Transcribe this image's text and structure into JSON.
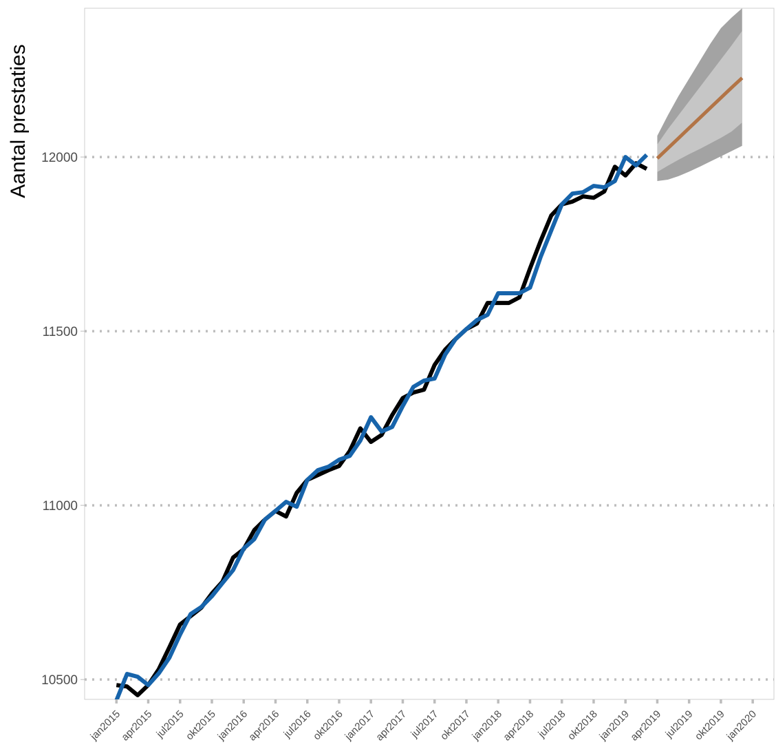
{
  "chart_data": {
    "type": "line",
    "y_label": "Aantal prestaties",
    "ylim": [
      10443,
      12427
    ],
    "yticks": [
      10500,
      11000,
      11500,
      12000
    ],
    "xlim": [
      "2014-10",
      "2020-03"
    ],
    "xticks": [
      {
        "value": "2015-01",
        "label": "jan2015"
      },
      {
        "value": "2015-04",
        "label": "apr2015"
      },
      {
        "value": "2015-07",
        "label": "jul2015"
      },
      {
        "value": "2015-10",
        "label": "okt2015"
      },
      {
        "value": "2016-01",
        "label": "jan2016"
      },
      {
        "value": "2016-04",
        "label": "apr2016"
      },
      {
        "value": "2016-07",
        "label": "jul2016"
      },
      {
        "value": "2016-10",
        "label": "okt2016"
      },
      {
        "value": "2017-01",
        "label": "jan2017"
      },
      {
        "value": "2017-04",
        "label": "apr2017"
      },
      {
        "value": "2017-07",
        "label": "jul2017"
      },
      {
        "value": "2017-10",
        "label": "okt2017"
      },
      {
        "value": "2018-01",
        "label": "jan2018"
      },
      {
        "value": "2018-04",
        "label": "apr2018"
      },
      {
        "value": "2018-07",
        "label": "jul2018"
      },
      {
        "value": "2018-10",
        "label": "okt2018"
      },
      {
        "value": "2019-01",
        "label": "jan2019"
      },
      {
        "value": "2019-04",
        "label": "apr2019"
      },
      {
        "value": "2019-07",
        "label": "jul2019"
      },
      {
        "value": "2019-10",
        "label": "okt2019"
      },
      {
        "value": "2020-01",
        "label": "jan2020"
      }
    ],
    "grid": true,
    "x": [
      "2015-01",
      "2015-02",
      "2015-03",
      "2015-04",
      "2015-05",
      "2015-06",
      "2015-07",
      "2015-08",
      "2015-09",
      "2015-10",
      "2015-11",
      "2015-12",
      "2016-01",
      "2016-02",
      "2016-03",
      "2016-04",
      "2016-05",
      "2016-06",
      "2016-07",
      "2016-08",
      "2016-09",
      "2016-10",
      "2016-11",
      "2016-12",
      "2017-01",
      "2017-02",
      "2017-03",
      "2017-04",
      "2017-05",
      "2017-06",
      "2017-07",
      "2017-08",
      "2017-09",
      "2017-10",
      "2017-11",
      "2017-12",
      "2018-01",
      "2018-02",
      "2018-03",
      "2018-04",
      "2018-05",
      "2018-06",
      "2018-07",
      "2018-08",
      "2018-09",
      "2018-10",
      "2018-11",
      "2018-12",
      "2019-01",
      "2019-02",
      "2019-03"
    ],
    "series": [
      {
        "color": "#000000",
        "values": [
          10484,
          10480,
          10455,
          10484,
          10530,
          10593,
          10658,
          10682,
          10706,
          10747,
          10781,
          10850,
          10874,
          10929,
          10959,
          10984,
          10968,
          11036,
          11073,
          11087,
          11101,
          11113,
          11156,
          11221,
          11182,
          11202,
          11259,
          11308,
          11324,
          11332,
          11403,
          11447,
          11478,
          11506,
          11522,
          11581,
          11581,
          11581,
          11597,
          11680,
          11759,
          11832,
          11864,
          11872,
          11887,
          11883,
          11901,
          11972,
          11947,
          11982,
          11966
        ]
      },
      {
        "color": "#1764ab",
        "values": [
          10440,
          10516,
          10508,
          10484,
          10518,
          10563,
          10629,
          10688,
          10708,
          10739,
          10777,
          10814,
          10876,
          10903,
          10959,
          10984,
          11010,
          10996,
          11073,
          11101,
          11111,
          11131,
          11142,
          11186,
          11253,
          11212,
          11225,
          11285,
          11340,
          11358,
          11364,
          11433,
          11478,
          11506,
          11532,
          11547,
          11609,
          11609,
          11609,
          11625,
          11713,
          11789,
          11864,
          11895,
          11899,
          11917,
          11913,
          11931,
          12000,
          11976,
          12006
        ]
      }
    ],
    "forecast": {
      "x": [
        "2019-04",
        "2019-05",
        "2019-06",
        "2019-07",
        "2019-08",
        "2019-09",
        "2019-10",
        "2019-11",
        "2019-12"
      ],
      "color": "#b27446",
      "values": [
        11996,
        12025,
        12054,
        12083,
        12112,
        12141,
        12170,
        12199,
        12227
      ],
      "bands": [
        {
          "color": "#a3a3a3",
          "lower": [
            11931,
            11935,
            11945,
            11958,
            11972,
            11987,
            12002,
            12017,
            12032
          ],
          "upper": [
            12061,
            12120,
            12175,
            12225,
            12275,
            12325,
            12370,
            12400,
            12427
          ]
        },
        {
          "color": "#c6c6c6",
          "lower": [
            11957,
            11975,
            11992,
            12008,
            12023,
            12039,
            12055,
            12073,
            12099
          ],
          "upper": [
            12036,
            12080,
            12120,
            12160,
            12200,
            12240,
            12280,
            12320,
            12362
          ]
        }
      ]
    }
  }
}
